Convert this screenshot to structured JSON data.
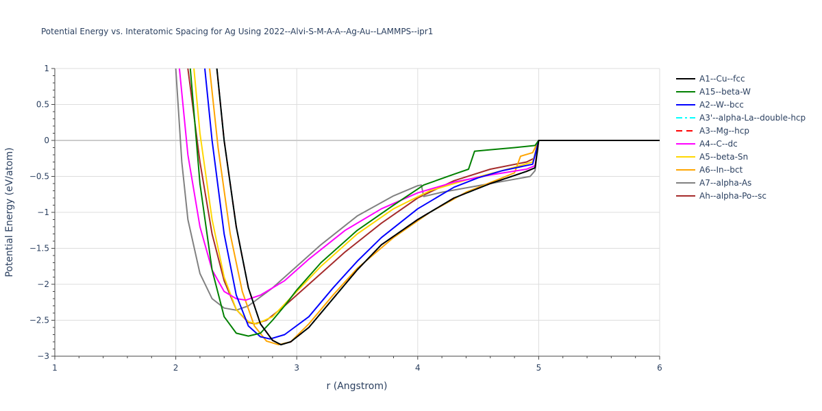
{
  "chart_data": {
    "type": "line",
    "title": "Potential Energy vs. Interatomic Spacing for Ag Using 2022--Alvi-S-M-A-A--Ag-Au--LAMMPS--ipr1",
    "xlabel": "r (Angstrom)",
    "ylabel": "Potential Energy (eV/atom)",
    "xlim": [
      1,
      6
    ],
    "ylim": [
      -3,
      1
    ],
    "xticks": [
      1,
      2,
      3,
      4,
      5,
      6
    ],
    "yticks": [
      1,
      0.5,
      0,
      -0.5,
      -1,
      -1.5,
      -2,
      -2.5,
      -3
    ],
    "ytick_labels": [
      "1",
      "0.5",
      "0",
      "−0.5",
      "−1",
      "−1.5",
      "−2",
      "−2.5",
      "−3"
    ],
    "grid": true,
    "legend_position": "right",
    "series": [
      {
        "name": "A1--Cu--fcc",
        "color": "#000000",
        "dash": "solid",
        "x": [
          2.34,
          2.4,
          2.5,
          2.6,
          2.7,
          2.8,
          2.87,
          2.95,
          3.1,
          3.3,
          3.5,
          3.7,
          4.0,
          4.3,
          4.6,
          4.9,
          4.97,
          5.0,
          6.0
        ],
        "y": [
          1.0,
          0.0,
          -1.2,
          -2.05,
          -2.55,
          -2.78,
          -2.84,
          -2.8,
          -2.6,
          -2.2,
          -1.8,
          -1.45,
          -1.1,
          -0.8,
          -0.6,
          -0.43,
          -0.38,
          0.0,
          0.0
        ]
      },
      {
        "name": "A15--beta-W",
        "color": "#008000",
        "dash": "solid",
        "x": [
          2.12,
          2.2,
          2.3,
          2.4,
          2.5,
          2.6,
          2.7,
          2.8,
          2.9,
          3.0,
          3.2,
          3.5,
          3.8,
          4.05,
          4.3,
          4.42,
          4.47,
          4.6,
          4.8,
          4.97,
          5.0,
          6.0
        ],
        "y": [
          1.0,
          -0.6,
          -1.8,
          -2.45,
          -2.68,
          -2.72,
          -2.68,
          -2.5,
          -2.3,
          -2.08,
          -1.7,
          -1.25,
          -0.9,
          -0.62,
          -0.47,
          -0.4,
          -0.15,
          -0.13,
          -0.1,
          -0.07,
          0.0,
          0.0
        ]
      },
      {
        "name": "A2--W--bcc",
        "color": "#0000ff",
        "dash": "solid",
        "x": [
          2.24,
          2.3,
          2.4,
          2.5,
          2.6,
          2.7,
          2.78,
          2.9,
          3.1,
          3.3,
          3.5,
          3.7,
          4.0,
          4.3,
          4.5,
          4.7,
          4.95,
          5.0,
          6.0
        ],
        "y": [
          1.0,
          0.0,
          -1.3,
          -2.15,
          -2.58,
          -2.73,
          -2.76,
          -2.7,
          -2.45,
          -2.05,
          -1.68,
          -1.35,
          -0.95,
          -0.65,
          -0.52,
          -0.42,
          -0.33,
          0.0,
          0.0
        ]
      },
      {
        "name": "A3'--alpha-La--double-hcp",
        "color": "#00ffff",
        "dash": "dashdot",
        "x": [
          2.34,
          2.4,
          2.5,
          2.6,
          2.7,
          2.8,
          2.87,
          2.95,
          3.1,
          3.3,
          3.5,
          3.7,
          4.0,
          4.3,
          4.6,
          4.9,
          4.97,
          5.0,
          6.0
        ],
        "y": [
          1.0,
          0.0,
          -1.2,
          -2.05,
          -2.55,
          -2.78,
          -2.84,
          -2.8,
          -2.6,
          -2.2,
          -1.8,
          -1.45,
          -1.1,
          -0.8,
          -0.6,
          -0.43,
          -0.38,
          0.0,
          0.0
        ]
      },
      {
        "name": "A3--Mg--hcp",
        "color": "#ff0000",
        "dash": "dash",
        "x": [
          2.34,
          2.4,
          2.5,
          2.6,
          2.7,
          2.8,
          2.87,
          2.95,
          3.1,
          3.3,
          3.5,
          3.7,
          4.0,
          4.3,
          4.6,
          4.9,
          4.97,
          5.0,
          6.0
        ],
        "y": [
          1.0,
          0.0,
          -1.2,
          -2.05,
          -2.55,
          -2.78,
          -2.84,
          -2.8,
          -2.6,
          -2.2,
          -1.8,
          -1.45,
          -1.1,
          -0.8,
          -0.6,
          -0.43,
          -0.38,
          0.0,
          0.0
        ]
      },
      {
        "name": "A4--C--dc",
        "color": "#ff00ff",
        "dash": "solid",
        "x": [
          2.03,
          2.1,
          2.2,
          2.3,
          2.4,
          2.5,
          2.58,
          2.7,
          2.9,
          3.1,
          3.4,
          3.7,
          4.0,
          4.3,
          4.6,
          4.9,
          4.97,
          5.0,
          6.0
        ],
        "y": [
          1.0,
          -0.2,
          -1.2,
          -1.8,
          -2.1,
          -2.2,
          -2.22,
          -2.15,
          -1.95,
          -1.65,
          -1.25,
          -0.95,
          -0.73,
          -0.58,
          -0.48,
          -0.4,
          -0.35,
          0.0,
          0.0
        ]
      },
      {
        "name": "A5--beta-Sn",
        "color": "#ffd700",
        "dash": "solid",
        "x": [
          2.15,
          2.2,
          2.3,
          2.4,
          2.5,
          2.6,
          2.67,
          2.8,
          3.0,
          3.2,
          3.5,
          3.8,
          4.1,
          4.4,
          4.7,
          4.95,
          5.0,
          6.0
        ],
        "y": [
          1.0,
          0.1,
          -1.1,
          -1.9,
          -2.35,
          -2.52,
          -2.55,
          -2.45,
          -2.1,
          -1.75,
          -1.3,
          -0.95,
          -0.7,
          -0.55,
          -0.42,
          -0.3,
          0.0,
          0.0
        ]
      },
      {
        "name": "A6--In--bct",
        "color": "#ffa500",
        "dash": "solid",
        "x": [
          2.28,
          2.35,
          2.45,
          2.55,
          2.65,
          2.75,
          2.85,
          2.95,
          3.1,
          3.3,
          3.5,
          3.8,
          4.1,
          4.4,
          4.7,
          4.8,
          4.85,
          4.95,
          5.0,
          6.0
        ],
        "y": [
          1.0,
          -0.1,
          -1.3,
          -2.1,
          -2.58,
          -2.79,
          -2.84,
          -2.8,
          -2.55,
          -2.15,
          -1.78,
          -1.35,
          -1.0,
          -0.72,
          -0.52,
          -0.45,
          -0.22,
          -0.17,
          0.0,
          0.0
        ]
      },
      {
        "name": "A7--alpha-As",
        "color": "#808080",
        "dash": "solid",
        "x": [
          2.0,
          2.05,
          2.1,
          2.2,
          2.3,
          2.4,
          2.5,
          2.6,
          2.8,
          3.0,
          3.2,
          3.5,
          3.8,
          4.0,
          4.03,
          4.05,
          4.2,
          4.5,
          4.8,
          4.93,
          4.97,
          5.0,
          6.0
        ],
        "y": [
          1.0,
          -0.3,
          -1.1,
          -1.85,
          -2.2,
          -2.33,
          -2.36,
          -2.3,
          -2.05,
          -1.75,
          -1.45,
          -1.05,
          -0.77,
          -0.63,
          -0.62,
          -0.78,
          -0.72,
          -0.63,
          -0.54,
          -0.5,
          -0.42,
          0.0,
          0.0
        ]
      },
      {
        "name": "Ah--alpha-Po--sc",
        "color": "#a52a2a",
        "dash": "solid",
        "x": [
          2.1,
          2.2,
          2.3,
          2.4,
          2.5,
          2.6,
          2.65,
          2.75,
          2.9,
          3.1,
          3.4,
          3.7,
          4.0,
          4.3,
          4.6,
          4.9,
          4.96,
          5.0,
          6.0
        ],
        "y": [
          1.0,
          -0.3,
          -1.3,
          -1.95,
          -2.35,
          -2.53,
          -2.55,
          -2.5,
          -2.3,
          -2.0,
          -1.55,
          -1.15,
          -0.8,
          -0.56,
          -0.4,
          -0.3,
          -0.25,
          0.0,
          0.0
        ]
      }
    ]
  }
}
